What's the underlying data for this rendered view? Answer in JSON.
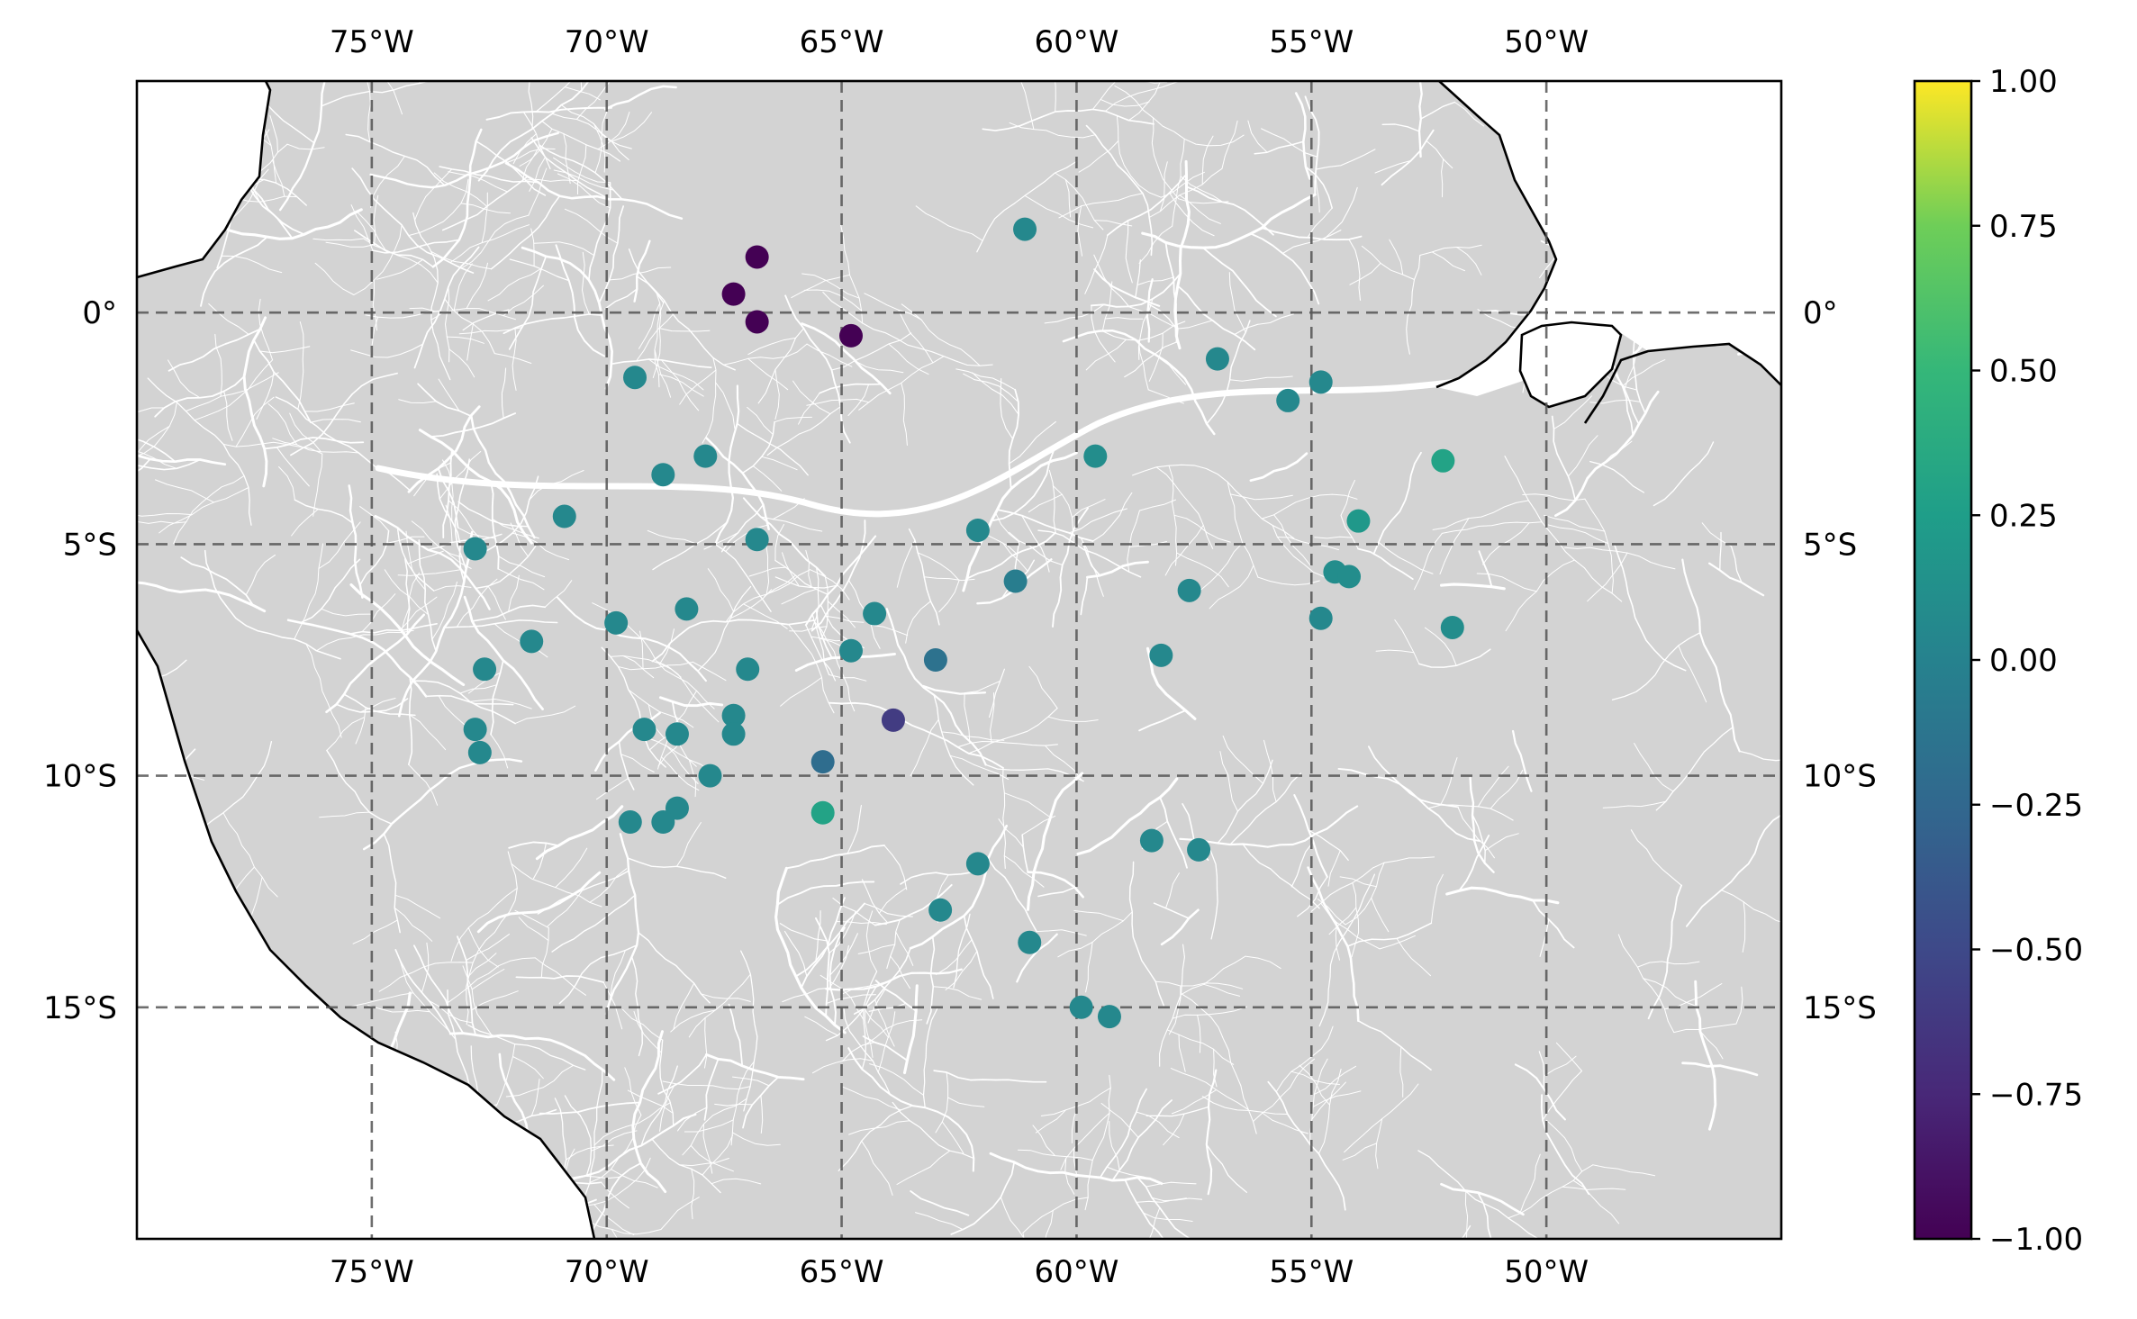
{
  "chart_data": {
    "type": "scatter",
    "map_type": "geographic scatter map with river network background",
    "x_axis": "longitude",
    "y_axis": "latitude",
    "xlim": [
      -80,
      -45
    ],
    "ylim": [
      -20,
      5
    ],
    "grid": true,
    "grid_style": "dashed",
    "xticks": [
      {
        "value": -75,
        "label": "75°W"
      },
      {
        "value": -70,
        "label": "70°W"
      },
      {
        "value": -65,
        "label": "65°W"
      },
      {
        "value": -60,
        "label": "60°W"
      },
      {
        "value": -55,
        "label": "55°W"
      },
      {
        "value": -50,
        "label": "50°W"
      }
    ],
    "yticks": [
      {
        "value": 0,
        "label": "0°"
      },
      {
        "value": -5,
        "label": "5°S"
      },
      {
        "value": -10,
        "label": "10°S"
      },
      {
        "value": -15,
        "label": "15°S"
      }
    ],
    "colorbar": {
      "colormap": "viridis",
      "min": -1.0,
      "max": 1.0,
      "ticks": [
        "1.00",
        "0.75",
        "0.50",
        "0.25",
        "0.00",
        "−0.25",
        "−0.50",
        "−0.75",
        "−1.00"
      ],
      "position": "right"
    },
    "points": [
      {
        "lon": -66.8,
        "lat": 1.2,
        "value": -1.0
      },
      {
        "lon": -67.3,
        "lat": 0.4,
        "value": -1.0
      },
      {
        "lon": -66.8,
        "lat": -0.2,
        "value": -1.0
      },
      {
        "lon": -64.8,
        "lat": -0.5,
        "value": -1.0
      },
      {
        "lon": -61.1,
        "lat": 1.8,
        "value": 0.05
      },
      {
        "lon": -57.0,
        "lat": -1.0,
        "value": 0.05
      },
      {
        "lon": -55.5,
        "lat": -1.9,
        "value": 0.05
      },
      {
        "lon": -54.8,
        "lat": -1.5,
        "value": 0.05
      },
      {
        "lon": -52.2,
        "lat": -3.2,
        "value": 0.3
      },
      {
        "lon": -54.0,
        "lat": -4.5,
        "value": 0.2
      },
      {
        "lon": -54.5,
        "lat": -5.6,
        "value": 0.1
      },
      {
        "lon": -54.2,
        "lat": -5.7,
        "value": 0.1
      },
      {
        "lon": -54.8,
        "lat": -6.6,
        "value": 0.05
      },
      {
        "lon": -52.0,
        "lat": -6.8,
        "value": 0.1
      },
      {
        "lon": -57.6,
        "lat": -6.0,
        "value": 0.05
      },
      {
        "lon": -58.2,
        "lat": -7.4,
        "value": 0.05
      },
      {
        "lon": -59.6,
        "lat": -3.1,
        "value": 0.1
      },
      {
        "lon": -62.1,
        "lat": -4.7,
        "value": 0.05
      },
      {
        "lon": -61.3,
        "lat": -5.8,
        "value": -0.05
      },
      {
        "lon": -69.4,
        "lat": -1.4,
        "value": 0.05
      },
      {
        "lon": -67.9,
        "lat": -3.1,
        "value": 0.05
      },
      {
        "lon": -68.8,
        "lat": -3.5,
        "value": 0.05
      },
      {
        "lon": -70.9,
        "lat": -4.4,
        "value": 0.05
      },
      {
        "lon": -72.8,
        "lat": -5.1,
        "value": 0.05
      },
      {
        "lon": -66.8,
        "lat": -4.9,
        "value": 0.05
      },
      {
        "lon": -71.6,
        "lat": -7.1,
        "value": 0.05
      },
      {
        "lon": -69.8,
        "lat": -6.7,
        "value": 0.05
      },
      {
        "lon": -68.3,
        "lat": -6.4,
        "value": 0.05
      },
      {
        "lon": -64.3,
        "lat": -6.5,
        "value": 0.05
      },
      {
        "lon": -64.8,
        "lat": -7.3,
        "value": 0.05
      },
      {
        "lon": -63.0,
        "lat": -7.5,
        "value": -0.15
      },
      {
        "lon": -72.6,
        "lat": -7.7,
        "value": 0.05
      },
      {
        "lon": -67.0,
        "lat": -7.7,
        "value": 0.05
      },
      {
        "lon": -67.3,
        "lat": -8.7,
        "value": 0.05
      },
      {
        "lon": -69.2,
        "lat": -9.0,
        "value": 0.05
      },
      {
        "lon": -68.5,
        "lat": -9.1,
        "value": 0.05
      },
      {
        "lon": -67.3,
        "lat": -9.1,
        "value": 0.05
      },
      {
        "lon": -72.8,
        "lat": -9.0,
        "value": 0.05
      },
      {
        "lon": -72.7,
        "lat": -9.5,
        "value": 0.05
      },
      {
        "lon": -63.9,
        "lat": -8.8,
        "value": -0.6
      },
      {
        "lon": -65.4,
        "lat": -9.7,
        "value": -0.2
      },
      {
        "lon": -67.8,
        "lat": -10.0,
        "value": 0.05
      },
      {
        "lon": -65.4,
        "lat": -10.8,
        "value": 0.3
      },
      {
        "lon": -68.5,
        "lat": -10.7,
        "value": 0.05
      },
      {
        "lon": -69.5,
        "lat": -11.0,
        "value": 0.05
      },
      {
        "lon": -68.8,
        "lat": -11.0,
        "value": 0.05
      },
      {
        "lon": -58.4,
        "lat": -11.4,
        "value": 0.05
      },
      {
        "lon": -57.4,
        "lat": -11.6,
        "value": 0.05
      },
      {
        "lon": -62.1,
        "lat": -11.9,
        "value": 0.05
      },
      {
        "lon": -62.9,
        "lat": -12.9,
        "value": 0.05
      },
      {
        "lon": -61.0,
        "lat": -13.6,
        "value": 0.05
      },
      {
        "lon": -59.9,
        "lat": -15.0,
        "value": 0.05
      },
      {
        "lon": -59.3,
        "lat": -15.2,
        "value": 0.05
      }
    ]
  }
}
